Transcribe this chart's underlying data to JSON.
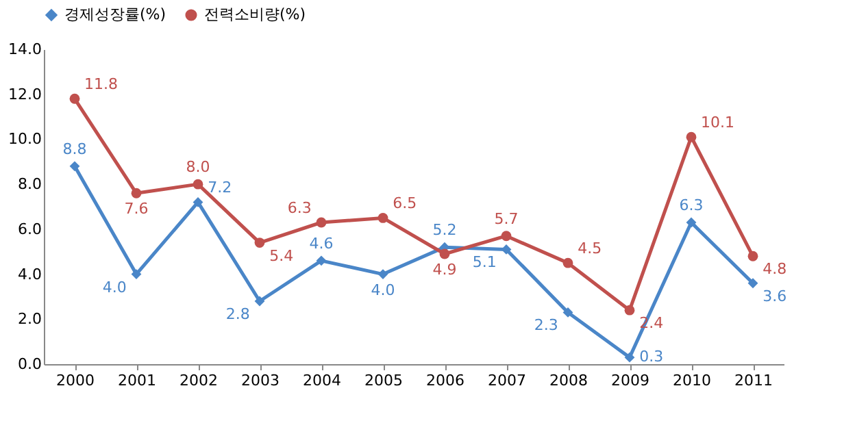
{
  "chart_data": {
    "type": "line",
    "categories": [
      "2000",
      "2001",
      "2002",
      "2003",
      "2004",
      "2005",
      "2006",
      "2007",
      "2008",
      "2009",
      "2010",
      "2011"
    ],
    "series": [
      {
        "name": "경제성장률(%)",
        "color": "#4a86c8",
        "marker": "diamond",
        "line_style": "solid",
        "values": [
          8.8,
          4.0,
          7.2,
          2.8,
          4.6,
          4.0,
          5.2,
          5.1,
          2.3,
          0.3,
          6.3,
          3.6
        ],
        "value_labels": [
          "8.8",
          "4.0",
          "7.2",
          "2.8",
          "4.6",
          "4.0",
          "5.2",
          "5.1",
          "2.3",
          "0.3",
          "6.3",
          "3.6"
        ]
      },
      {
        "name": "전력소비량(%)",
        "color": "#c0504d",
        "marker": "circle",
        "line_style": "solid",
        "values": [
          11.8,
          7.6,
          8.0,
          5.4,
          6.3,
          6.5,
          4.9,
          5.7,
          4.5,
          2.4,
          10.1,
          4.8
        ],
        "value_labels": [
          "11.8",
          "7.6",
          "8.0",
          "5.4",
          "6.3",
          "6.5",
          "4.9",
          "5.7",
          "4.5",
          "2.4",
          "10.1",
          "4.8"
        ]
      }
    ],
    "ylim": [
      0,
      14
    ],
    "yticks": [
      {
        "value": 0,
        "label": "0.0"
      },
      {
        "value": 2,
        "label": "2.0"
      },
      {
        "value": 4,
        "label": "4.0"
      },
      {
        "value": 6,
        "label": "6.0"
      },
      {
        "value": 8,
        "label": "8.0"
      },
      {
        "value": 10,
        "label": "10.0"
      },
      {
        "value": 12,
        "label": "12.0"
      },
      {
        "value": 14,
        "label": "14.0"
      }
    ],
    "legend": "top",
    "grid": false
  }
}
